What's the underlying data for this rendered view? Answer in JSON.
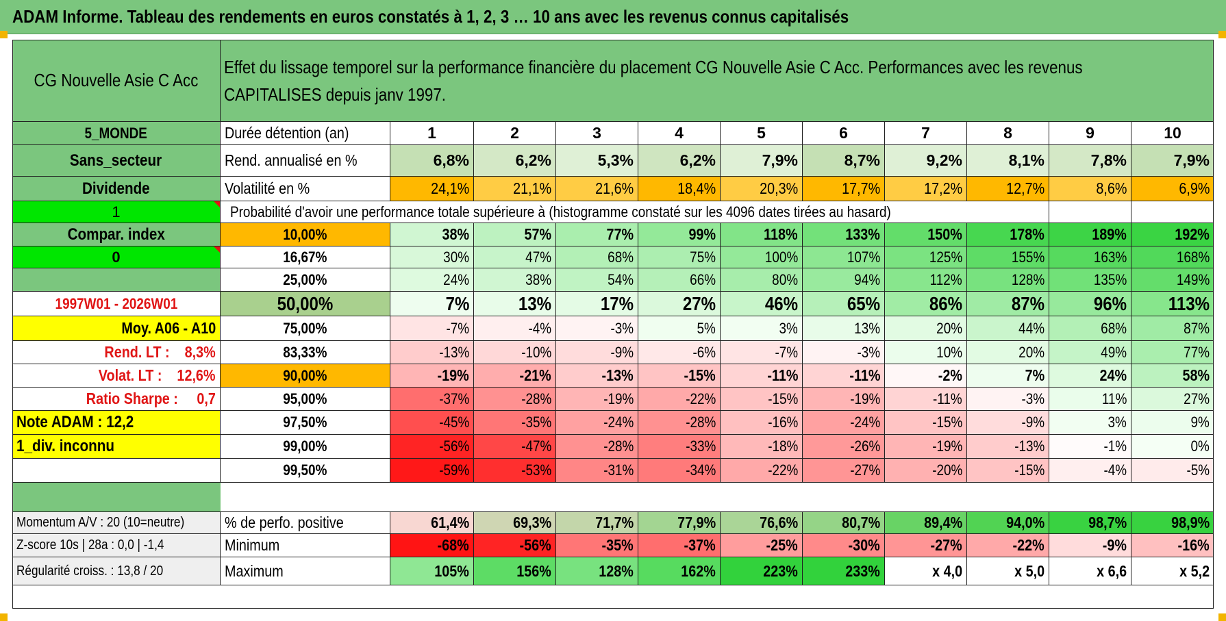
{
  "title": "ADAM Informe. Tableau des rendements en euros constatés à 1, 2, 3 … 10 ans avec les revenus connus capitalisés",
  "header": {
    "fund_name": "CG Nouvelle Asie C Acc",
    "description_line1": "Effet du lissage temporel sur la performance financière du placement CG Nouvelle Asie C Acc. Performances avec les revenus",
    "description_line2": "CAPITALISES depuis janv 1997."
  },
  "sidebar": {
    "region": "5_MONDE",
    "sector": "Sans_secteur",
    "dividend_label": "Dividende",
    "dividend_flag": "1",
    "compar_index_label": "Compar. index",
    "compar_index_flag": "0",
    "period": "1997W01 - 2026W01",
    "moy_label": "Moy. A06 - A10",
    "rend_lt": "Rend. LT :    8,3%",
    "volat_lt": "Volat. LT :    12,6%",
    "sharpe": "Ratio Sharpe :     0,7",
    "note_adam": "Note ADAM : 12,2",
    "div_status": "1_div. inconnu",
    "momentum": "Momentum A/V : 20 (10=neutre)",
    "zscore": "Z-score 10s | 28a : 0,0 | -1,4",
    "regularite": "Régularité croiss. : 13,8 / 20"
  },
  "table": {
    "duration_label": "Durée détention (an)",
    "years": [
      "1",
      "2",
      "3",
      "4",
      "5",
      "6",
      "7",
      "8",
      "9",
      "10"
    ],
    "rend_label": "Rend. annualisé en %",
    "rend_values": [
      "6,8%",
      "6,2%",
      "5,3%",
      "6,2%",
      "7,9%",
      "8,7%",
      "9,2%",
      "8,1%",
      "7,8%",
      "7,9%"
    ],
    "vol_label": "Volatilité en %",
    "vol_values": [
      "24,1%",
      "21,1%",
      "21,6%",
      "18,4%",
      "20,3%",
      "17,7%",
      "17,2%",
      "12,7%",
      "8,6%",
      "6,9%"
    ],
    "prob_heading": "Probabilité d'avoir une performance totale supérieure à (histogramme constaté sur les 4096 dates tirées au hasard)",
    "prob_rows": [
      {
        "pct": "10,00%",
        "values": [
          "38%",
          "57%",
          "77%",
          "99%",
          "118%",
          "133%",
          "150%",
          "178%",
          "189%",
          "192%"
        ]
      },
      {
        "pct": "16,67%",
        "values": [
          "30%",
          "47%",
          "68%",
          "75%",
          "100%",
          "107%",
          "125%",
          "155%",
          "163%",
          "168%"
        ]
      },
      {
        "pct": "25,00%",
        "values": [
          "24%",
          "38%",
          "54%",
          "66%",
          "80%",
          "94%",
          "112%",
          "128%",
          "135%",
          "149%"
        ]
      },
      {
        "pct": "50,00%",
        "values": [
          "7%",
          "13%",
          "17%",
          "27%",
          "46%",
          "65%",
          "86%",
          "87%",
          "96%",
          "113%"
        ]
      },
      {
        "pct": "75,00%",
        "values": [
          "-7%",
          "-4%",
          "-3%",
          "5%",
          "3%",
          "13%",
          "20%",
          "44%",
          "68%",
          "87%"
        ]
      },
      {
        "pct": "83,33%",
        "values": [
          "-13%",
          "-10%",
          "-9%",
          "-6%",
          "-7%",
          "-3%",
          "10%",
          "20%",
          "49%",
          "77%"
        ]
      },
      {
        "pct": "90,00%",
        "values": [
          "-19%",
          "-21%",
          "-13%",
          "-15%",
          "-11%",
          "-11%",
          "-2%",
          "7%",
          "24%",
          "58%"
        ]
      },
      {
        "pct": "95,00%",
        "values": [
          "-37%",
          "-28%",
          "-19%",
          "-22%",
          "-15%",
          "-19%",
          "-11%",
          "-3%",
          "11%",
          "27%"
        ]
      },
      {
        "pct": "97,50%",
        "values": [
          "-45%",
          "-35%",
          "-24%",
          "-28%",
          "-16%",
          "-24%",
          "-15%",
          "-9%",
          "3%",
          "9%"
        ]
      },
      {
        "pct": "99,00%",
        "values": [
          "-56%",
          "-47%",
          "-28%",
          "-33%",
          "-18%",
          "-26%",
          "-19%",
          "-13%",
          "-1%",
          "0%"
        ]
      },
      {
        "pct": "99,50%",
        "values": [
          "-59%",
          "-53%",
          "-31%",
          "-34%",
          "-22%",
          "-27%",
          "-20%",
          "-15%",
          "-4%",
          "-5%"
        ]
      }
    ],
    "positive_label": "% de perfo. positive",
    "positive_values": [
      "61,4%",
      "69,3%",
      "71,7%",
      "77,9%",
      "76,6%",
      "80,7%",
      "89,4%",
      "94,0%",
      "98,7%",
      "98,9%"
    ],
    "min_label": "Minimum",
    "min_values": [
      "-68%",
      "-56%",
      "-35%",
      "-37%",
      "-25%",
      "-30%",
      "-27%",
      "-22%",
      "-9%",
      "-16%"
    ],
    "max_label": "Maximum",
    "max_values": [
      "105%",
      "156%",
      "128%",
      "162%",
      "223%",
      "233%",
      "x 4,0",
      "x 5,0",
      "x 6,6",
      "x 5,2"
    ]
  },
  "colors": {
    "header_green": "#7bc67e",
    "bright_green": "#00e600",
    "orange": "#ffb800",
    "yellow": "#ffff00",
    "red_text": "#e01515",
    "light_green": "#c5e0b4",
    "median_green": "#a9d08e"
  }
}
